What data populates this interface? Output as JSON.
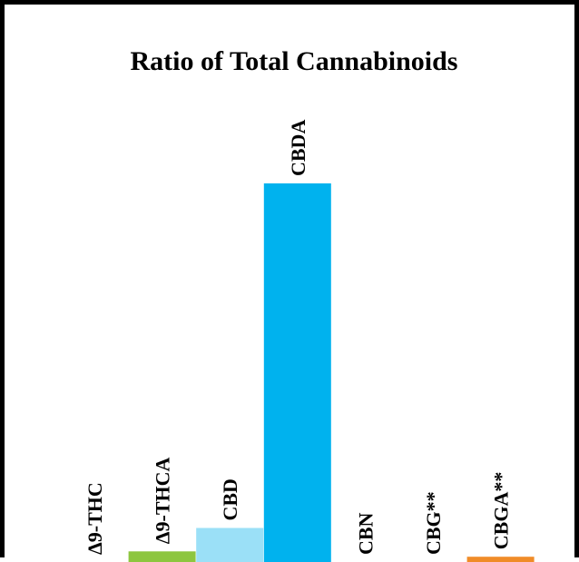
{
  "chart_data": {
    "type": "bar",
    "title": "Ratio of Total Cannabinoids",
    "categories": [
      "Δ9-THC",
      "Δ9-THCA",
      "CBD",
      "CBDA",
      "CBN",
      "CBG**",
      "CBGA**"
    ],
    "values": [
      0,
      2.8,
      9.0,
      100,
      0,
      0,
      1.4
    ],
    "colors": [
      "#000000",
      "#8DC63F",
      "#9BE0F7",
      "#00B2EE",
      "#000000",
      "#000000",
      "#F08C28"
    ],
    "xlabel": "",
    "ylabel": "",
    "ylim": [
      0,
      100
    ],
    "grid": false,
    "legend": "none"
  }
}
